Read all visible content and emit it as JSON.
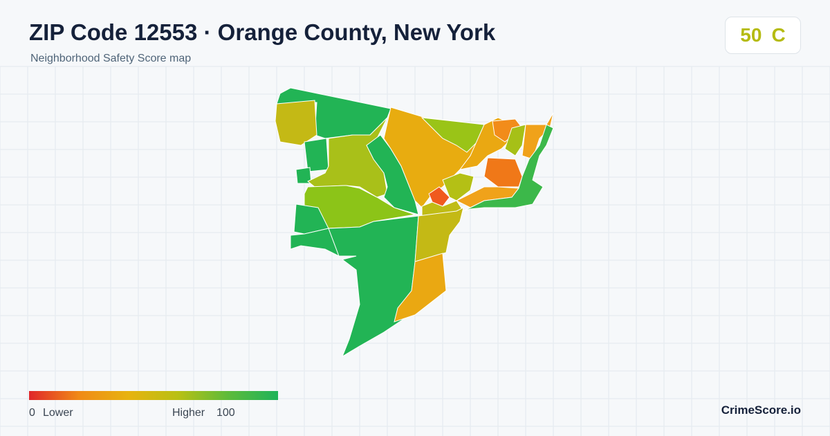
{
  "header": {
    "title": "ZIP Code 12553 · Orange County, New York",
    "subtitle": "Neighborhood Safety Score map"
  },
  "score": {
    "value": 50,
    "grade": "C"
  },
  "legend": {
    "min": 0,
    "min_label": "Lower",
    "max_label": "Higher",
    "max": 100
  },
  "brand": "CrimeScore.io"
}
